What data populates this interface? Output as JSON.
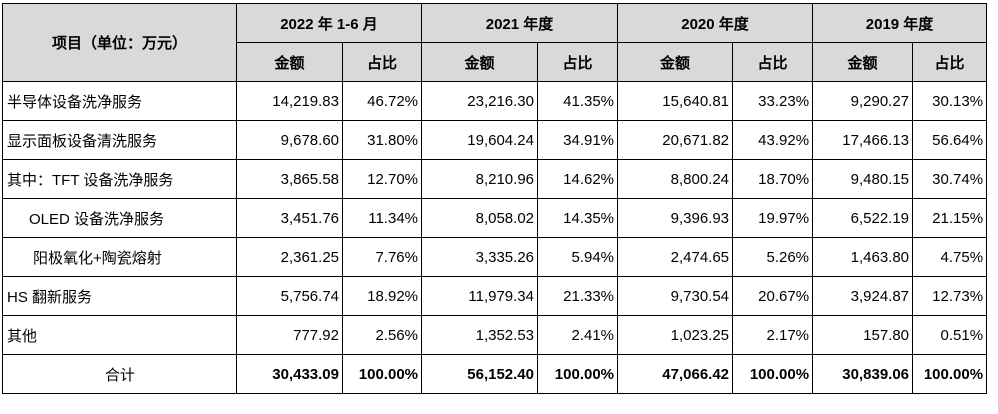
{
  "table": {
    "corner_label": "项目（单位：万元）",
    "periods": [
      "2022 年 1-6 月",
      "2021 年度",
      "2020 年度",
      "2019 年度"
    ],
    "sub_headers": [
      "金额",
      "占比"
    ],
    "rows": [
      {
        "label": "半导体设备洗净服务",
        "cells": [
          "14,219.83",
          "46.72%",
          "23,216.30",
          "41.35%",
          "15,640.81",
          "33.23%",
          "9,290.27",
          "30.13%"
        ]
      },
      {
        "label": "显示面板设备清洗服务",
        "cells": [
          "9,678.60",
          "31.80%",
          "19,604.24",
          "34.91%",
          "20,671.82",
          "43.92%",
          "17,466.13",
          "56.64%"
        ]
      },
      {
        "label": "其中：TFT 设备洗净服务",
        "cells": [
          "3,865.58",
          "12.70%",
          "8,210.96",
          "14.62%",
          "8,800.24",
          "18.70%",
          "9,480.15",
          "30.74%"
        ]
      },
      {
        "label": "OLED 设备洗净服务",
        "cells": [
          "3,451.76",
          "11.34%",
          "8,058.02",
          "14.35%",
          "9,396.93",
          "19.97%",
          "6,522.19",
          "21.15%"
        ]
      },
      {
        "label": "阳极氧化+陶瓷熔射",
        "cells": [
          "2,361.25",
          "7.76%",
          "3,335.26",
          "5.94%",
          "2,474.65",
          "5.26%",
          "1,463.80",
          "4.75%"
        ]
      },
      {
        "label": "HS 翻新服务",
        "cells": [
          "5,756.74",
          "18.92%",
          "11,979.34",
          "21.33%",
          "9,730.54",
          "20.67%",
          "3,924.87",
          "12.73%"
        ]
      },
      {
        "label": "其他",
        "cells": [
          "777.92",
          "2.56%",
          "1,352.53",
          "2.41%",
          "1,023.25",
          "2.17%",
          "157.80",
          "0.51%"
        ]
      },
      {
        "label": "合计",
        "cells": [
          "30,433.09",
          "100.00%",
          "56,152.40",
          "100.00%",
          "47,066.42",
          "100.00%",
          "30,839.06",
          "100.00%"
        ]
      }
    ]
  }
}
